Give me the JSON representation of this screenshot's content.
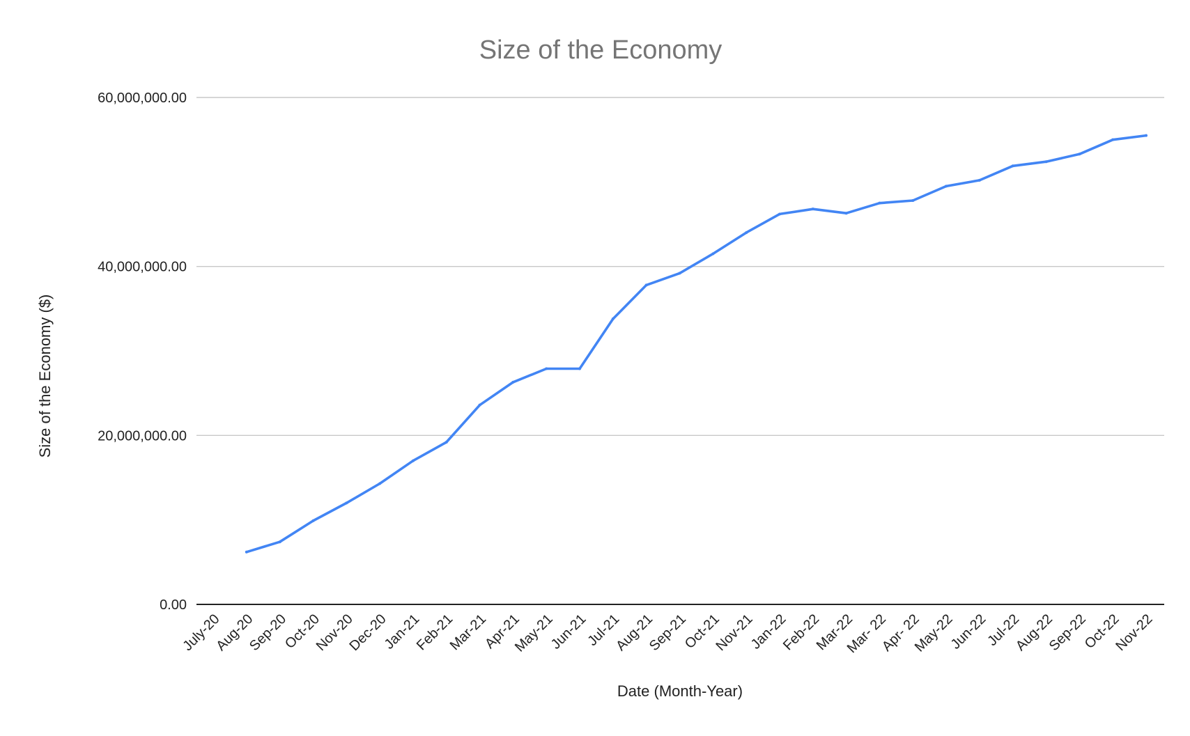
{
  "chart_data": {
    "type": "line",
    "title": "Size of the Economy",
    "xlabel": "Date (Month-Year)",
    "ylabel": "Size of the Economy ($)",
    "ylim": [
      0,
      60000000
    ],
    "y_ticks": [
      {
        "value": 0,
        "label": "0.00"
      },
      {
        "value": 20000000,
        "label": "20,000,000.00"
      },
      {
        "value": 40000000,
        "label": "40,000,000.00"
      },
      {
        "value": 60000000,
        "label": "60,000,000.00"
      }
    ],
    "grid": true,
    "legend": "none",
    "line_color": "#4285f4",
    "categories": [
      "July-20",
      "Aug-20",
      "Sep-20",
      "Oct-20",
      "Nov-20",
      "Dec-20",
      "Jan-21",
      "Feb-21",
      "Mar-21",
      "Apr-21",
      "May-21",
      "Jun-21",
      "Jul-21",
      "Aug-21",
      "Sep-21",
      "Oct-21",
      "Nov-21",
      "Jan-22",
      "Feb-22",
      "Mar-22",
      "Mar- 22",
      "Apr- 22",
      "May-22",
      "Jun-22",
      "Jul-22",
      "Aug-22",
      "Sep-22",
      "Oct-22",
      "Nov-22"
    ],
    "series": [
      {
        "values": [
          null,
          6200000,
          7400000,
          9900000,
          12000000,
          14300000,
          17000000,
          19200000,
          23600000,
          26300000,
          27900000,
          27900000,
          33800000,
          37800000,
          39200000,
          41500000,
          44000000,
          46200000,
          46800000,
          46300000,
          47500000,
          47800000,
          49500000,
          50200000,
          51900000,
          52400000,
          53300000,
          55000000,
          55500000
        ]
      }
    ]
  }
}
